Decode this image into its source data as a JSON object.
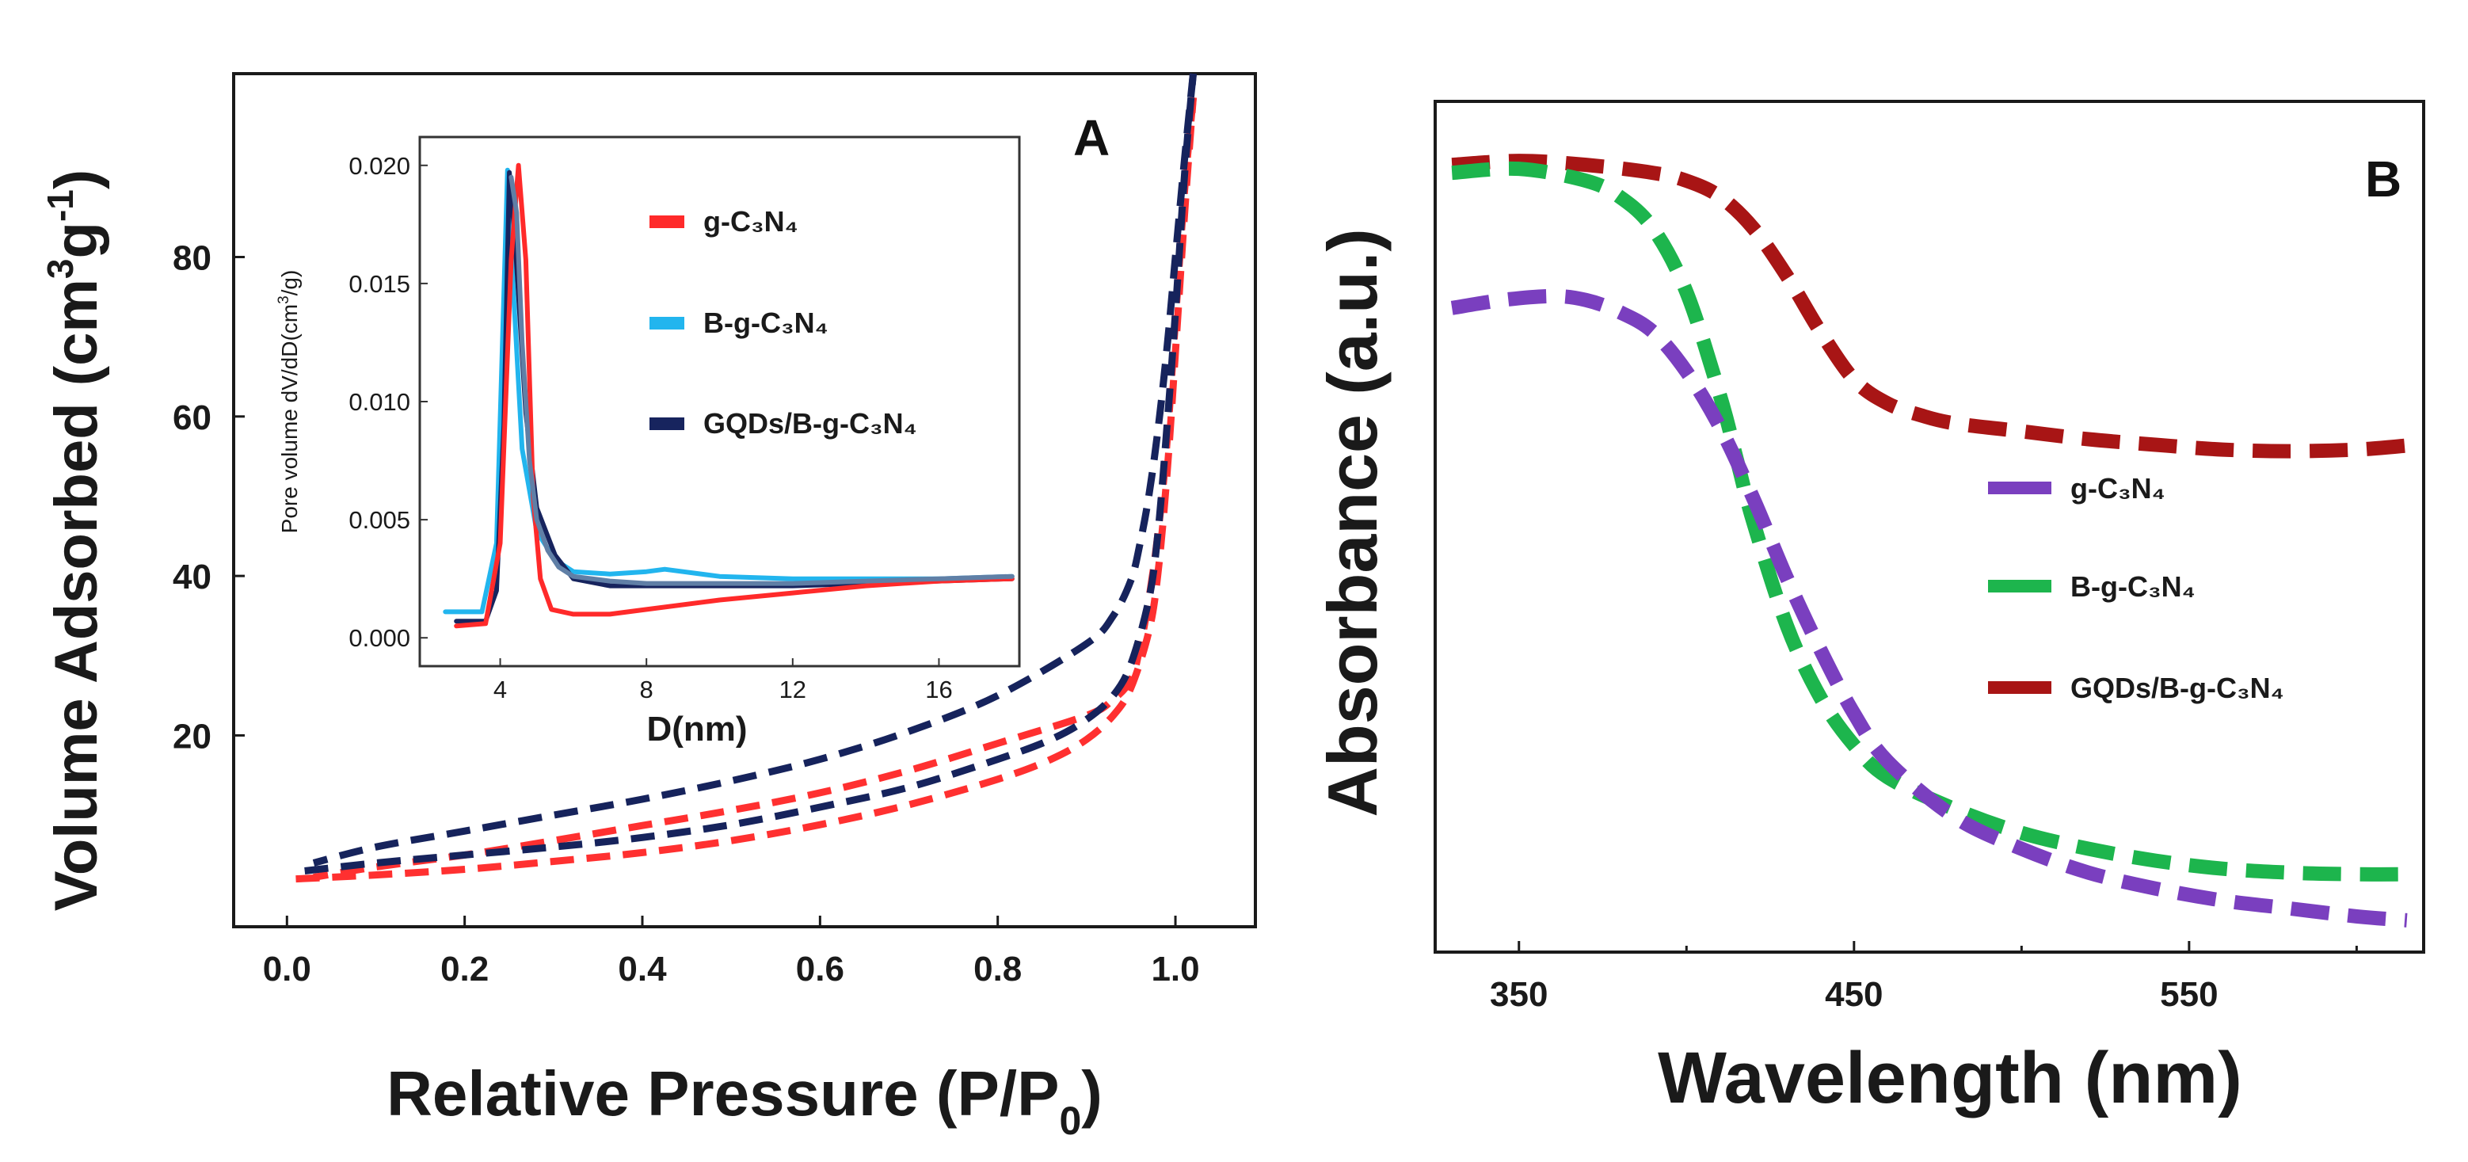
{
  "chart_data": [
    {
      "type": "line",
      "panel_label": "A",
      "title": "",
      "xlabel_main": "Relative Pressure (P/P",
      "xlabel_sub": "0",
      "xlabel_close": ")",
      "ylabel_main": "Volume Adsorbed (cm",
      "ylabel_sup1": "3",
      "ylabel_mid": "g",
      "ylabel_sup2": "-1",
      "ylabel_close": ")",
      "xlim": [
        -0.06,
        1.09
      ],
      "ylim": [
        -4,
        103
      ],
      "xticks": [
        "0.0",
        "0.2",
        "0.4",
        "0.6",
        "0.8",
        "1.0"
      ],
      "yticks": [
        "20",
        "40",
        "60",
        "80"
      ],
      "line_style": "dashed",
      "series": [
        {
          "name": "g-C3N4 adsorption",
          "color": "#ff3030",
          "x": [
            0.01,
            0.1,
            0.2,
            0.3,
            0.4,
            0.5,
            0.6,
            0.7,
            0.8,
            0.86,
            0.9,
            0.93,
            0.95,
            0.97,
            0.98,
            0.99,
            1.0,
            1.01,
            1.02
          ],
          "y": [
            2,
            2.5,
            3.2,
            4.2,
            5.3,
            6.8,
            8.8,
            11.3,
            14.5,
            17,
            19.5,
            22.5,
            26,
            33,
            40,
            52,
            68,
            85,
            100
          ]
        },
        {
          "name": "g-C3N4 desorption",
          "color": "#ff3030",
          "x": [
            1.02,
            1.01,
            1.0,
            0.99,
            0.98,
            0.97,
            0.96,
            0.95,
            0.93,
            0.9,
            0.8,
            0.7,
            0.6,
            0.5,
            0.4,
            0.3,
            0.2,
            0.1,
            0.03
          ],
          "y": [
            100,
            88,
            72,
            56,
            45,
            37,
            31,
            27,
            24.5,
            22.5,
            19,
            15.6,
            12.8,
            10.6,
            8.7,
            6.8,
            5,
            3.5,
            2.2
          ]
        },
        {
          "name": "GQDs/B-g-C3N4 adsorption",
          "color": "#16235c",
          "x": [
            0.02,
            0.1,
            0.2,
            0.3,
            0.4,
            0.5,
            0.6,
            0.7,
            0.8,
            0.86,
            0.9,
            0.93,
            0.95,
            0.97,
            0.98,
            0.99,
            1.0,
            1.01,
            1.02
          ],
          "y": [
            3,
            4,
            5,
            6,
            7.2,
            8.8,
            11,
            13.5,
            17,
            19.5,
            22,
            25,
            29,
            37,
            45,
            58,
            73,
            90,
            103
          ]
        },
        {
          "name": "GQDs/B-g-C3N4 desorption",
          "color": "#16235c",
          "x": [
            1.02,
            1.01,
            1.0,
            0.99,
            0.98,
            0.97,
            0.96,
            0.95,
            0.93,
            0.9,
            0.8,
            0.7,
            0.6,
            0.5,
            0.4,
            0.3,
            0.2,
            0.1,
            0.03
          ],
          "y": [
            103,
            92,
            80,
            68,
            58,
            50,
            44,
            39.5,
            35,
            31.5,
            25,
            20.5,
            17,
            14.3,
            12,
            10,
            8,
            6,
            4
          ]
        }
      ],
      "inset": {
        "xlabel": "D(nm)",
        "ylabel": "Pore volume dV/dD(cm",
        "ylabel_sup": "3",
        "ylabel_close": "/g)",
        "xlim": [
          1.8,
          18.2
        ],
        "ylim": [
          -0.0012,
          0.0212
        ],
        "xticks": [
          "4",
          "8",
          "12",
          "16"
        ],
        "yticks": [
          "0.000",
          "0.005",
          "0.010",
          "0.015",
          "0.020"
        ],
        "legend": [
          {
            "label": "g-C₃N₄",
            "color": "#ff2a2a"
          },
          {
            "label": "B-g-C₃N₄",
            "color": "#22b5ee"
          },
          {
            "label": "GQDs/B-g-C₃N₄",
            "color": "#17245e"
          }
        ],
        "series": [
          {
            "name": "B-g-C3N4",
            "color": "#22b5ee",
            "x": [
              2.5,
              3.5,
              3.9,
              4.05,
              4.2,
              4.35,
              4.6,
              5,
              5.5,
              6,
              7,
              8,
              8.5,
              9,
              10,
              12,
              14,
              16,
              18
            ],
            "y": [
              0.0011,
              0.0011,
              0.004,
              0.012,
              0.0198,
              0.015,
              0.008,
              0.0045,
              0.0033,
              0.0028,
              0.0027,
              0.0028,
              0.0029,
              0.0028,
              0.0026,
              0.0025,
              0.0025,
              0.0025,
              0.0026
            ]
          },
          {
            "name": "GQDs/B-g-C3N4",
            "color": "#17245e",
            "x": [
              2.8,
              3.6,
              3.9,
              4.1,
              4.25,
              4.4,
              4.7,
              5,
              5.5,
              6,
              7,
              8,
              10,
              12,
              14,
              16,
              18
            ],
            "y": [
              0.0007,
              0.0007,
              0.002,
              0.009,
              0.0197,
              0.017,
              0.0095,
              0.0055,
              0.0035,
              0.0025,
              0.0022,
              0.0022,
              0.0022,
              0.0022,
              0.0023,
              0.0024,
              0.0025
            ]
          },
          {
            "name": "g-C3N4",
            "color": "#ff2a2a",
            "x": [
              2.8,
              3.6,
              4.0,
              4.3,
              4.5,
              4.7,
              4.9,
              5.1,
              5.4,
              6,
              7,
              8,
              10,
              12,
              14,
              16,
              18
            ],
            "y": [
              0.0005,
              0.0006,
              0.004,
              0.016,
              0.02,
              0.016,
              0.006,
              0.0025,
              0.0012,
              0.001,
              0.001,
              0.0012,
              0.0016,
              0.0019,
              0.0022,
              0.0024,
              0.0025
            ]
          },
          {
            "name": "blended overlap",
            "color": "#607fa6",
            "x": [
              4.3,
              4.45,
              4.6,
              4.8,
              5.0,
              5.3,
              5.6,
              6,
              7,
              8,
              9,
              10,
              12,
              14,
              16,
              18
            ],
            "y": [
              0.0195,
              0.018,
              0.0125,
              0.0075,
              0.005,
              0.0037,
              0.003,
              0.0026,
              0.0024,
              0.0023,
              0.0023,
              0.0023,
              0.0023,
              0.0024,
              0.0025,
              0.0026
            ]
          }
        ]
      }
    },
    {
      "type": "line",
      "panel_label": "B",
      "title": "",
      "xlabel": "Wavelength (nm)",
      "ylabel": "Absorbance (a.u.)",
      "xlim": [
        325,
        620
      ],
      "ylim": [
        0,
        1
      ],
      "xticks": [
        "350",
        "450",
        "550"
      ],
      "yticks": [],
      "line_style": "dashed",
      "legend": [
        {
          "label": "g-C₃N₄",
          "color": "#7a3fbf"
        },
        {
          "label": "B-g-C₃N₄",
          "color": "#1db54d"
        },
        {
          "label": "GQDs/B-g-C₃N₄",
          "color": "#a81515"
        }
      ],
      "series": [
        {
          "name": "GQDs/B-g-C3N4",
          "color": "#a81515",
          "x": [
            330,
            350,
            370,
            390,
            400,
            410,
            420,
            430,
            440,
            450,
            460,
            470,
            480,
            500,
            520,
            540,
            560,
            580,
            600,
            615
          ],
          "y": [
            0.97,
            0.975,
            0.97,
            0.96,
            0.95,
            0.93,
            0.89,
            0.83,
            0.76,
            0.7,
            0.67,
            0.655,
            0.645,
            0.635,
            0.625,
            0.618,
            0.612,
            0.61,
            0.612,
            0.617
          ]
        },
        {
          "name": "B-g-C3N4",
          "color": "#1db54d",
          "x": [
            330,
            350,
            370,
            380,
            390,
            400,
            410,
            415,
            420,
            430,
            440,
            450,
            460,
            480,
            500,
            520,
            540,
            560,
            580,
            600,
            615
          ],
          "y": [
            0.96,
            0.965,
            0.95,
            0.93,
            0.89,
            0.81,
            0.68,
            0.6,
            0.52,
            0.39,
            0.3,
            0.24,
            0.2,
            0.16,
            0.13,
            0.11,
            0.095,
            0.085,
            0.08,
            0.078,
            0.078
          ]
        },
        {
          "name": "g-C3N4",
          "color": "#7a3fbf",
          "x": [
            330,
            345,
            360,
            370,
            380,
            390,
            400,
            410,
            420,
            430,
            440,
            450,
            460,
            480,
            500,
            520,
            540,
            560,
            580,
            600,
            615
          ],
          "y": [
            0.79,
            0.8,
            0.805,
            0.8,
            0.785,
            0.76,
            0.71,
            0.64,
            0.55,
            0.45,
            0.36,
            0.28,
            0.22,
            0.15,
            0.11,
            0.08,
            0.06,
            0.045,
            0.035,
            0.025,
            0.02
          ]
        }
      ]
    }
  ]
}
